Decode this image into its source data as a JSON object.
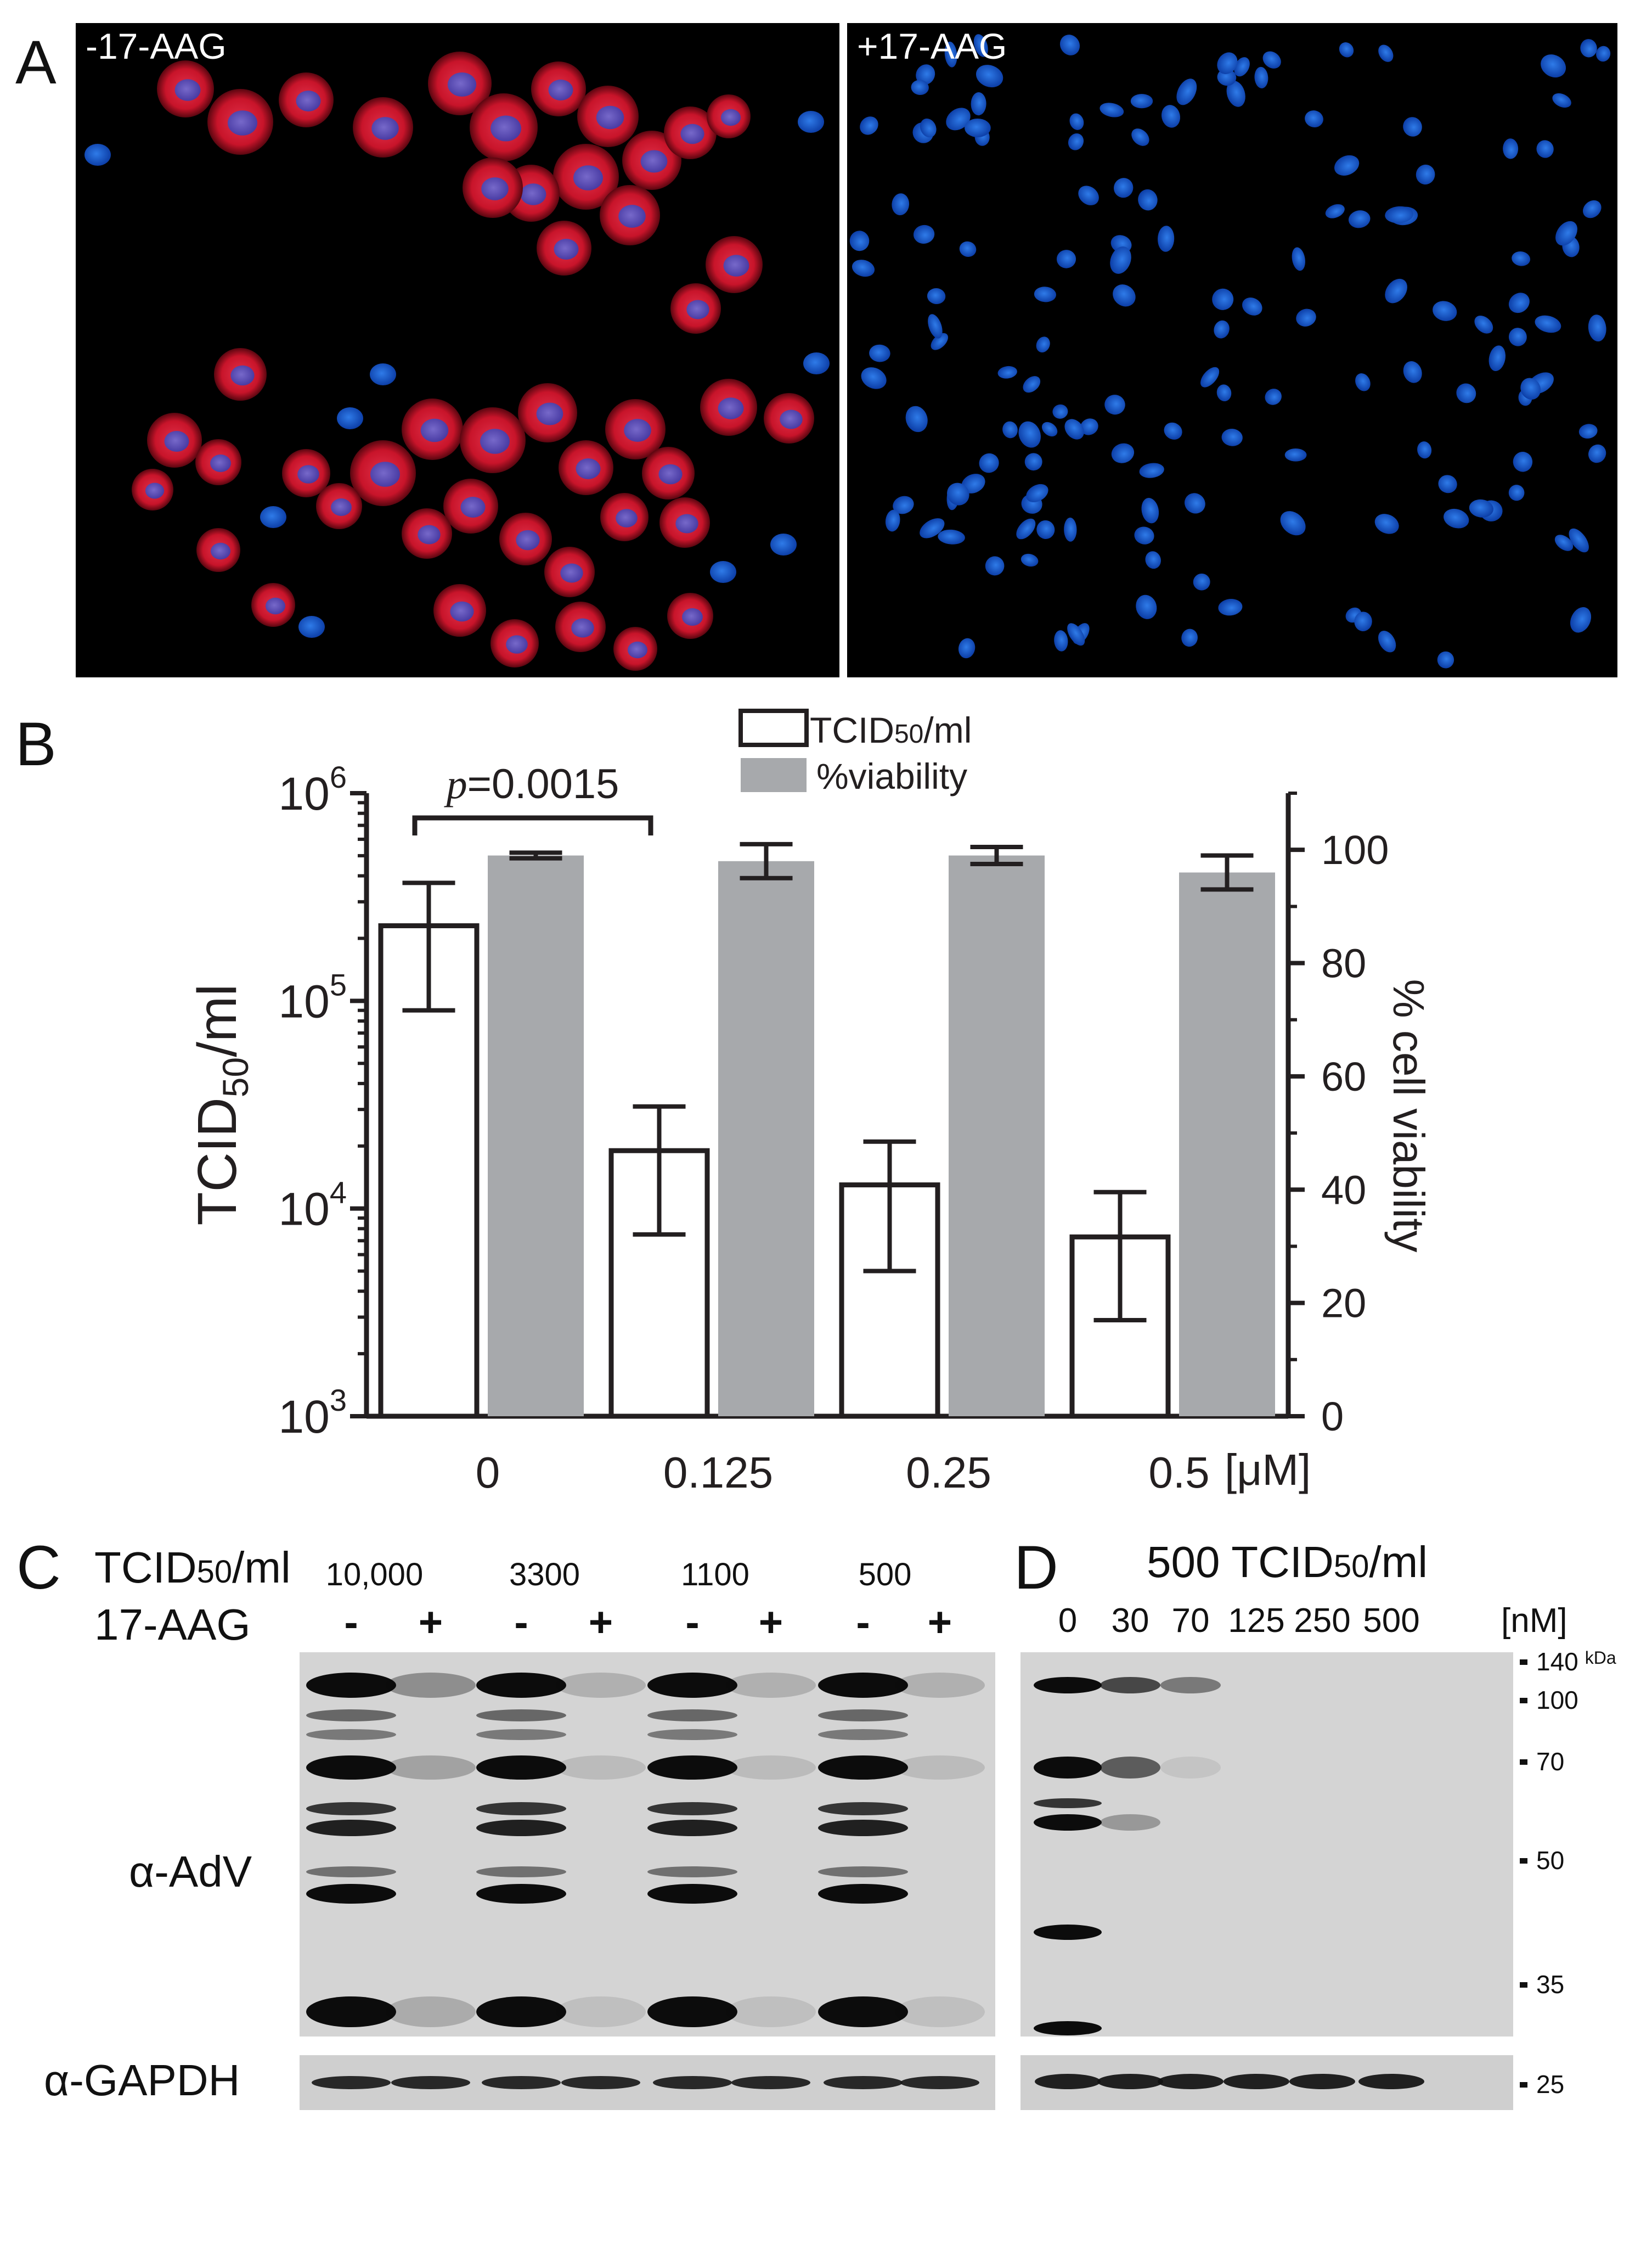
{
  "panels": {
    "a": {
      "letter": "A",
      "left_label": "-17-AAG",
      "right_label": "+17-AAG"
    },
    "b": {
      "letter": "B"
    },
    "c": {
      "letter": "C"
    },
    "d": {
      "letter": "D"
    }
  },
  "chart_data": {
    "type": "bar",
    "categories": [
      "0",
      "0.125",
      "0.25",
      "0.5"
    ],
    "x_unit": "[μM]",
    "ylabel_left": {
      "base": "TCID",
      "sub": "50",
      "rest": "/ml"
    },
    "ylabel_right": "% cell viability",
    "yscale_left": "log",
    "ylim_left": [
      1000,
      1000000
    ],
    "yticks_left": [
      {
        "value": 1000,
        "base": "10",
        "exp": "3"
      },
      {
        "value": 10000,
        "base": "10",
        "exp": "4"
      },
      {
        "value": 100000,
        "base": "10",
        "exp": "5"
      },
      {
        "value": 1000000,
        "base": "10",
        "exp": "6"
      }
    ],
    "ylim_right": [
      0,
      110
    ],
    "yticks_right": [
      0,
      20,
      40,
      60,
      80,
      100
    ],
    "legend": {
      "placement": "top",
      "entries": [
        {
          "base": "TCID",
          "sub": "50",
          "rest": "/ml",
          "style": "open"
        },
        {
          "text": "%viability",
          "style": "grey"
        }
      ]
    },
    "series": [
      {
        "name": "TCID50/ml",
        "axis": "left",
        "values": [
          230000,
          19000,
          13000,
          7300
        ],
        "error_low": [
          90000,
          7500,
          5000,
          2900
        ],
        "error_high": [
          370000,
          31000,
          21000,
          12000
        ]
      },
      {
        "name": "%viability",
        "axis": "right",
        "values": [
          99,
          98,
          99,
          96
        ],
        "error_low": [
          98.5,
          95,
          97.5,
          93
        ],
        "error_high": [
          99.5,
          101,
          100.5,
          99
        ]
      }
    ],
    "annotation": {
      "p_symbol": "p",
      "text": "=0.0015"
    },
    "grid": false,
    "colors": {
      "grey_bar": "#a7a9ac",
      "open_bar": "#ffffff",
      "axis": "#231f20"
    }
  },
  "blot_c": {
    "titer_label": {
      "base": "TCID",
      "sub": "50",
      "rest": "/ml"
    },
    "titers": [
      "10,000",
      "3300",
      "1100",
      "500"
    ],
    "drug_label": "17-AAG",
    "signs": [
      "-",
      "+",
      "-",
      "+",
      "-",
      "+",
      "-",
      "+"
    ],
    "antibody_top": "α-AdV",
    "antibody_bottom": "α-GAPDH"
  },
  "blot_d": {
    "titer": "500",
    "titer_label": {
      "base": "TCID",
      "sub": "50",
      "rest": "/ml"
    },
    "doses": [
      "0",
      "30",
      "70",
      "125",
      "250",
      "500"
    ],
    "unit": "[nM]",
    "markers": [
      {
        "value": "140",
        "unit": "kDa"
      },
      {
        "value": "100"
      },
      {
        "value": "70"
      },
      {
        "value": "50"
      },
      {
        "value": "35"
      },
      {
        "value": "25"
      }
    ]
  }
}
